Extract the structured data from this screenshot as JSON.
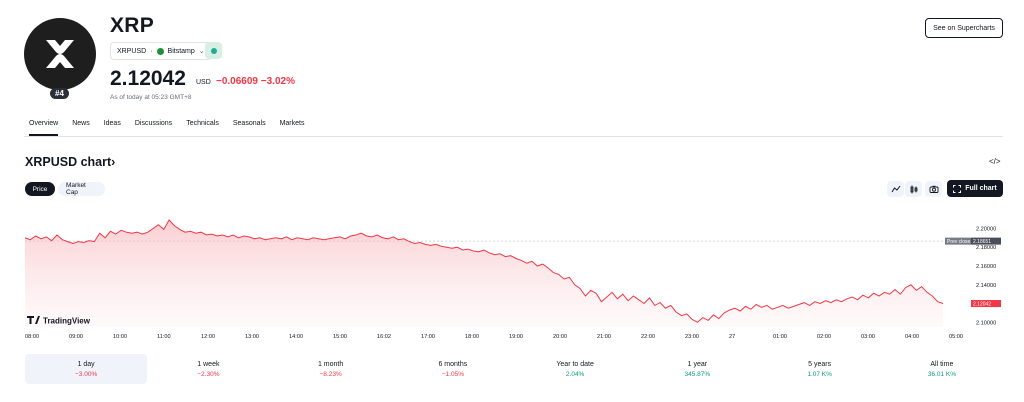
{
  "header": {
    "title": "XRP",
    "rank": "#4",
    "pair": "XRPUSD",
    "exchange": "Bitstamp",
    "price": "2.12042",
    "currency": "USD",
    "change": "−0.06609 −3.02%",
    "as_of": "As of today at 05:23 GMT+8",
    "supercharts_label": "See on Supercharts"
  },
  "tabs": [
    "Overview",
    "News",
    "Ideas",
    "Discussions",
    "Technicals",
    "Seasonals",
    "Markets"
  ],
  "chart_section": {
    "title": "XRPUSD chart",
    "chips": [
      "Price",
      "Market Cap"
    ],
    "full_chart_label": "Full chart",
    "watermark": "TradingView",
    "prev_close_label": "Prev close",
    "prev_close_value": "2.18651",
    "current_tag": "2.12042"
  },
  "chart_data": {
    "type": "area",
    "x_ticks": [
      "08:00",
      "09:00",
      "10:00",
      "11:00",
      "12:00",
      "13:00",
      "14:00",
      "15:00",
      "16:02",
      "17:00",
      "18:00",
      "19:00",
      "20:00",
      "21:00",
      "22:00",
      "23:00",
      "27",
      "01:00",
      "02:00",
      "03:00",
      "04:00",
      "05:00"
    ],
    "y_ticks": [
      "2.20000",
      "2.18000",
      "2.16000",
      "2.14000",
      "2.12000",
      "2.10000"
    ],
    "ylim": [
      2.095,
      2.225
    ],
    "prev_close": 2.18651,
    "series": [
      {
        "values": [
          2.19,
          2.188,
          2.192,
          2.189,
          2.191,
          2.187,
          2.193,
          2.188,
          2.186,
          2.184,
          2.186,
          2.185,
          2.187,
          2.186,
          2.195,
          2.19,
          2.197,
          2.194,
          2.198,
          2.196,
          2.195,
          2.196,
          2.194,
          2.196,
          2.2,
          2.204,
          2.199,
          2.209,
          2.203,
          2.199,
          2.196,
          2.197,
          2.195,
          2.196,
          2.193,
          2.194,
          2.192,
          2.193,
          2.191,
          2.193,
          2.19,
          2.192,
          2.191,
          2.189,
          2.19,
          2.188,
          2.189,
          2.19,
          2.189,
          2.191,
          2.188,
          2.19,
          2.189,
          2.188,
          2.19,
          2.189,
          2.188,
          2.189,
          2.19,
          2.191,
          2.189,
          2.192,
          2.193,
          2.195,
          2.192,
          2.191,
          2.193,
          2.19,
          2.189,
          2.191,
          2.188,
          2.189,
          2.186,
          2.184,
          2.185,
          2.183,
          2.182,
          2.183,
          2.181,
          2.18,
          2.179,
          2.18,
          2.177,
          2.178,
          2.176,
          2.175,
          2.177,
          2.174,
          2.172,
          2.173,
          2.17,
          2.171,
          2.168,
          2.166,
          2.163,
          2.165,
          2.16,
          2.162,
          2.158,
          2.153,
          2.151,
          2.146,
          2.148,
          2.14,
          2.136,
          2.128,
          2.134,
          2.131,
          2.122,
          2.127,
          2.132,
          2.125,
          2.13,
          2.123,
          2.128,
          2.124,
          2.12,
          2.126,
          2.118,
          2.121,
          2.115,
          2.118,
          2.111,
          2.107,
          2.109,
          2.103,
          2.1,
          2.105,
          2.102,
          2.108,
          2.104,
          2.11,
          2.113,
          2.115,
          2.112,
          2.117,
          2.114,
          2.119,
          2.116,
          2.118,
          2.114,
          2.116,
          2.118,
          2.115,
          2.117,
          2.119,
          2.121,
          2.118,
          2.122,
          2.12,
          2.123,
          2.121,
          2.124,
          2.122,
          2.125,
          2.127,
          2.124,
          2.129,
          2.126,
          2.131,
          2.128,
          2.132,
          2.13,
          2.135,
          2.13,
          2.137,
          2.14,
          2.134,
          2.138,
          2.132,
          2.128,
          2.122,
          2.12
        ]
      }
    ]
  },
  "periods": [
    {
      "label": "1 day",
      "value": "−3.00%",
      "trend": "neg"
    },
    {
      "label": "1 week",
      "value": "−2.30%",
      "trend": "neg"
    },
    {
      "label": "1 month",
      "value": "−8.23%",
      "trend": "neg"
    },
    {
      "label": "6 months",
      "value": "−1.05%",
      "trend": "neg"
    },
    {
      "label": "Year to date",
      "value": "2.04%",
      "trend": "pos"
    },
    {
      "label": "1 year",
      "value": "345.87%",
      "trend": "pos"
    },
    {
      "label": "5 years",
      "value": "1.07 K%",
      "trend": "pos"
    },
    {
      "label": "All time",
      "value": "36.01 K%",
      "trend": "pos"
    }
  ],
  "colors": {
    "negative": "#f23645",
    "positive": "#089981",
    "line": "#f23645",
    "fill": "#fbd5d8"
  },
  "icons": [
    "xrp-logo-icon",
    "embed-code-icon",
    "indicator-icon",
    "candles-icon",
    "camera-icon",
    "fullscreen-icon",
    "chevron-down-icon",
    "tradingview-logo-icon"
  ]
}
